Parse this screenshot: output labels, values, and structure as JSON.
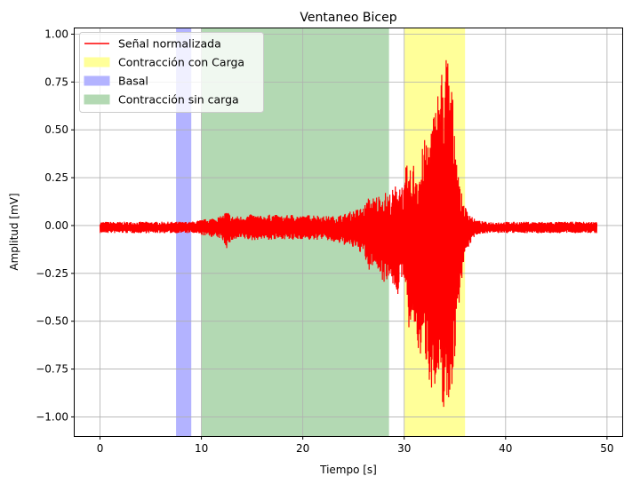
{
  "chart_data": {
    "type": "line",
    "title": "Ventaneo Bicep",
    "xlabel": "Tiempo [s]",
    "ylabel": "Amplitud [mV]",
    "xlim": [
      -2.5,
      51.5
    ],
    "ylim": [
      -1.1,
      1.03
    ],
    "xticks": [
      0,
      10,
      20,
      30,
      40,
      50
    ],
    "yticks": [
      1.0,
      0.75,
      0.5,
      0.25,
      0.0,
      -0.25,
      -0.5,
      -0.75,
      -1.0
    ],
    "xtick_labels": [
      "0",
      "10",
      "20",
      "30",
      "40",
      "50"
    ],
    "ytick_labels": [
      "1.00",
      "0.75",
      "0.50",
      "0.25",
      "0.00",
      "−0.25",
      "−0.50",
      "−0.75",
      "−1.00"
    ],
    "grid": true,
    "legend_position": "upper-left",
    "regions": [
      {
        "name": "Contracción con Carga",
        "x_start": 30.0,
        "x_end": 36.0,
        "color": "#ffff99"
      },
      {
        "name": "Basal",
        "x_start": 7.5,
        "x_end": 9.0,
        "color": "#b3b3ff"
      },
      {
        "name": "Contracción sin carga",
        "x_start": 10.0,
        "x_end": 28.5,
        "color": "#b3d9b3"
      }
    ],
    "series": [
      {
        "name": "Señal normalizada",
        "color": "#ff0000",
        "envelope_upper": [
          [
            0,
            0.02
          ],
          [
            2,
            0.02
          ],
          [
            4,
            0.02
          ],
          [
            6,
            0.02
          ],
          [
            8,
            0.02
          ],
          [
            9,
            0.02
          ],
          [
            10,
            0.03
          ],
          [
            11,
            0.04
          ],
          [
            12,
            0.05
          ],
          [
            12.5,
            0.08
          ],
          [
            13,
            0.05
          ],
          [
            14,
            0.05
          ],
          [
            15,
            0.06
          ],
          [
            16,
            0.05
          ],
          [
            17,
            0.06
          ],
          [
            18,
            0.05
          ],
          [
            19,
            0.06
          ],
          [
            20,
            0.05
          ],
          [
            21,
            0.06
          ],
          [
            22,
            0.05
          ],
          [
            23,
            0.05
          ],
          [
            24,
            0.06
          ],
          [
            25,
            0.08
          ],
          [
            26,
            0.1
          ],
          [
            26.5,
            0.15
          ],
          [
            27,
            0.15
          ],
          [
            28,
            0.18
          ],
          [
            28.5,
            0.17
          ],
          [
            29,
            0.2
          ],
          [
            29.5,
            0.25
          ],
          [
            30,
            0.2
          ],
          [
            30.2,
            0.33
          ],
          [
            30.5,
            0.28
          ],
          [
            31,
            0.35
          ],
          [
            31.5,
            0.35
          ],
          [
            32,
            0.45
          ],
          [
            32.5,
            0.52
          ],
          [
            33,
            0.62
          ],
          [
            33.5,
            0.8
          ],
          [
            34,
            0.88
          ],
          [
            34.2,
            0.94
          ],
          [
            34.5,
            0.85
          ],
          [
            35,
            0.55
          ],
          [
            35.5,
            0.2
          ],
          [
            36,
            0.1
          ],
          [
            37,
            0.03
          ],
          [
            38,
            0.02
          ],
          [
            40,
            0.02
          ],
          [
            44,
            0.02
          ],
          [
            49,
            0.02
          ]
        ],
        "envelope_lower": [
          [
            0,
            -0.04
          ],
          [
            2,
            -0.04
          ],
          [
            4,
            -0.04
          ],
          [
            6,
            -0.04
          ],
          [
            8,
            -0.04
          ],
          [
            9,
            -0.04
          ],
          [
            10,
            -0.05
          ],
          [
            11,
            -0.06
          ],
          [
            12,
            -0.07
          ],
          [
            12.5,
            -0.12
          ],
          [
            13,
            -0.08
          ],
          [
            14,
            -0.07
          ],
          [
            15,
            -0.08
          ],
          [
            16,
            -0.07
          ],
          [
            17,
            -0.08
          ],
          [
            18,
            -0.07
          ],
          [
            19,
            -0.08
          ],
          [
            20,
            -0.07
          ],
          [
            21,
            -0.08
          ],
          [
            22,
            -0.07
          ],
          [
            23,
            -0.09
          ],
          [
            24,
            -0.1
          ],
          [
            25,
            -0.12
          ],
          [
            26,
            -0.15
          ],
          [
            26.5,
            -0.25
          ],
          [
            27,
            -0.2
          ],
          [
            28,
            -0.3
          ],
          [
            28.5,
            -0.27
          ],
          [
            29,
            -0.33
          ],
          [
            29.5,
            -0.38
          ],
          [
            30,
            -0.25
          ],
          [
            30.2,
            -0.45
          ],
          [
            30.5,
            -0.58
          ],
          [
            31,
            -0.55
          ],
          [
            31.5,
            -0.7
          ],
          [
            32,
            -0.68
          ],
          [
            32.5,
            -0.82
          ],
          [
            33,
            -0.9
          ],
          [
            33.5,
            -0.95
          ],
          [
            34,
            -0.97
          ],
          [
            34.2,
            -1.0
          ],
          [
            34.5,
            -0.95
          ],
          [
            35,
            -0.7
          ],
          [
            35.5,
            -0.35
          ],
          [
            36,
            -0.15
          ],
          [
            37,
            -0.05
          ],
          [
            38,
            -0.04
          ],
          [
            40,
            -0.04
          ],
          [
            44,
            -0.04
          ],
          [
            49,
            -0.04
          ]
        ]
      }
    ]
  }
}
